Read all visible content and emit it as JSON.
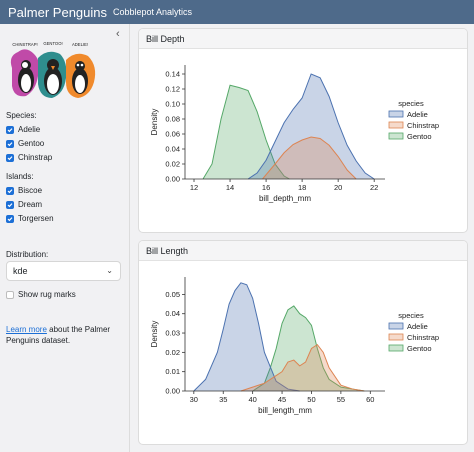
{
  "header": {
    "title": "Palmer Penguins",
    "subtitle": "Cobblepot Analytics"
  },
  "sidebar": {
    "logo_labels": [
      "CHINSTRAP!",
      "GENTOO!",
      "ADELIE!"
    ],
    "species_label": "Species:",
    "species": [
      {
        "label": "Adelie",
        "checked": true
      },
      {
        "label": "Gentoo",
        "checked": true
      },
      {
        "label": "Chinstrap",
        "checked": true
      }
    ],
    "islands_label": "Islands:",
    "islands": [
      {
        "label": "Biscoe",
        "checked": true
      },
      {
        "label": "Dream",
        "checked": true
      },
      {
        "label": "Torgersen",
        "checked": true
      }
    ],
    "distribution_label": "Distribution:",
    "distribution_value": "kde",
    "rug_label": "Show rug marks",
    "rug_checked": false,
    "about_link": "Learn more",
    "about_text": " about the Palmer Penguins dataset."
  },
  "colors": {
    "Adelie": "#4c72b0",
    "Chinstrap": "#dd8452",
    "Gentoo": "#55a868",
    "navbar": "#4e6a8a",
    "accent": "#1c6fd6"
  },
  "cards": {
    "depth_title": "Bill Depth",
    "length_title": "Bill Length"
  },
  "chart_data": [
    {
      "type": "area",
      "xlabel": "bill_depth_mm",
      "ylabel": "Density",
      "xlim": [
        11.5,
        22.6
      ],
      "ylim": [
        0,
        0.152
      ],
      "xticks": [
        12,
        14,
        16,
        18,
        20,
        22
      ],
      "yticks": [
        0.0,
        0.02,
        0.04,
        0.06,
        0.08,
        0.1,
        0.12,
        0.14
      ],
      "legend_title": "species",
      "legend_position": "right",
      "series": [
        {
          "name": "Adelie",
          "x": [
            15.0,
            15.5,
            16.0,
            16.5,
            17.0,
            17.5,
            18.0,
            18.5,
            19.0,
            19.5,
            20.0,
            20.5,
            21.0,
            21.5,
            22.0
          ],
          "values": [
            0.0,
            0.008,
            0.025,
            0.05,
            0.075,
            0.093,
            0.108,
            0.14,
            0.135,
            0.11,
            0.075,
            0.045,
            0.024,
            0.008,
            0.0
          ]
        },
        {
          "name": "Chinstrap",
          "x": [
            15.8,
            16.5,
            17.0,
            17.5,
            18.0,
            18.5,
            19.0,
            19.5,
            20.0,
            20.5,
            21.0
          ],
          "values": [
            0.0,
            0.02,
            0.035,
            0.046,
            0.052,
            0.056,
            0.054,
            0.045,
            0.03,
            0.012,
            0.0
          ]
        },
        {
          "name": "Gentoo",
          "x": [
            12.5,
            13.0,
            13.5,
            14.0,
            14.5,
            15.0,
            15.5,
            16.0,
            16.5,
            17.0,
            17.3
          ],
          "values": [
            0.0,
            0.02,
            0.08,
            0.125,
            0.122,
            0.118,
            0.09,
            0.052,
            0.02,
            0.004,
            0.0
          ]
        }
      ]
    },
    {
      "type": "area",
      "xlabel": "bill_length_mm",
      "ylabel": "Density",
      "xlim": [
        28.5,
        62.5
      ],
      "ylim": [
        0,
        0.059
      ],
      "xticks": [
        30,
        35,
        40,
        45,
        50,
        55,
        60
      ],
      "yticks": [
        0.0,
        0.01,
        0.02,
        0.03,
        0.04,
        0.05
      ],
      "legend_title": "species",
      "legend_position": "right",
      "series": [
        {
          "name": "Adelie",
          "x": [
            30,
            32,
            34,
            35,
            36,
            37,
            38,
            39,
            40,
            41,
            42,
            44,
            46,
            48
          ],
          "values": [
            0.0,
            0.006,
            0.02,
            0.032,
            0.045,
            0.052,
            0.056,
            0.055,
            0.048,
            0.035,
            0.02,
            0.005,
            0.001,
            0.0
          ]
        },
        {
          "name": "Chinstrap",
          "x": [
            38,
            40,
            42,
            44,
            45,
            46,
            47,
            48,
            49,
            50,
            51,
            52,
            53,
            55,
            57,
            59
          ],
          "values": [
            0.0,
            0.002,
            0.004,
            0.008,
            0.01,
            0.015,
            0.016,
            0.013,
            0.015,
            0.022,
            0.024,
            0.02,
            0.012,
            0.003,
            0.001,
            0.0
          ]
        },
        {
          "name": "Gentoo",
          "x": [
            40,
            42,
            43,
            44,
            45,
            46,
            47,
            48,
            49,
            50,
            51,
            52,
            53,
            55,
            57,
            59
          ],
          "values": [
            0.0,
            0.004,
            0.012,
            0.022,
            0.035,
            0.042,
            0.044,
            0.04,
            0.038,
            0.034,
            0.022,
            0.012,
            0.006,
            0.002,
            0.001,
            0.0
          ]
        }
      ]
    }
  ]
}
